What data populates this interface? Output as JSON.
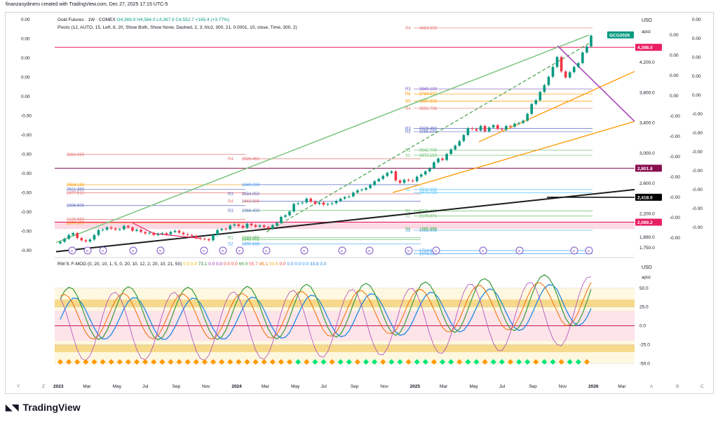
{
  "header": {
    "publisher_line": "finanzasydinero created with TradingView.com, Dec 27, 2025 17:15 UTC-5"
  },
  "legend": {
    "symbol_line": "Gold Futures · 1W · COMEX",
    "ohlc": "O4,369.9 H4,584.0 L4,367.9 C4,552.7 +165.4 (+3.77%)",
    "pivots_line": "Pivots (12, AUTO, 15, Left, 8, 20, Show Both, Show None, Dashed, 2, 3, hlc3, 300, 21, 0.0001, 10, close, Time, 300, 2)"
  },
  "oscillator_legend": {
    "name": "RW ft. F-MOD (0, 20, 10, 1, 5, 0, 20, 10, 12, 2, 20, 10, 21, 50)",
    "values": [
      "0.0",
      "0.0",
      "73.1",
      "0.0",
      "0.0",
      "0.0",
      "0.0",
      "66.9",
      "55.7",
      "45.1",
      "50.6",
      "0.0",
      "0.0",
      "0.0",
      "0.0",
      "33.8",
      "0.0"
    ]
  },
  "price_axis": {
    "currency": "USD",
    "scale_label": "apoz",
    "ticks": [
      "4,200.0",
      "3,800.0",
      "3,400.0",
      "3,000.0",
      "2,600.0",
      "2,200.0",
      "1,890.0",
      "1,750.0"
    ],
    "badges": [
      {
        "label": "GCG2026",
        "color": "#089981"
      },
      {
        "label": "4,398.0",
        "color": "#e91e63"
      },
      {
        "label": "2,801.8",
        "color": "#880e4f"
      },
      {
        "label": "2,418.0",
        "color": "#000000"
      },
      {
        "label": "2,089.2",
        "color": "#e91e63"
      }
    ]
  },
  "osc_axis": {
    "currency": "USD",
    "scale_label": "apoz",
    "ticks": [
      "50.0",
      "25.0",
      "0.0",
      "-25.0",
      "-50.0"
    ]
  },
  "left_scale": [
    "0.00",
    "0.00",
    "0.00",
    "0.00",
    "0.00",
    "-0.00",
    "-0.00",
    "-0.00",
    "-0.00",
    "-0.00",
    "-0.00",
    "-0.00",
    "-0.00"
  ],
  "right_scale_a": [
    "0.00",
    "0.00",
    "0.00",
    "0.00",
    "-0.00",
    "-0.00",
    "-0.00",
    "-0.00",
    "-0.00",
    "-0.00",
    "-0.00"
  ],
  "right_scale_b": [
    "0.00",
    "0.00",
    "0.00",
    "0.00",
    "0.00",
    "-0.00",
    "-0.00",
    "-0.00",
    "-0.00",
    "-0.00",
    "-0.00",
    "-0.00"
  ],
  "time_axis": [
    "2023",
    "Mar",
    "May",
    "Jul",
    "Sep",
    "Nov",
    "2024",
    "Mar",
    "May",
    "Jul",
    "Sep",
    "Nov",
    "2025",
    "Mar",
    "May",
    "Jul",
    "Sep",
    "Nov",
    "2026",
    "Mar"
  ],
  "corner_letters": [
    "Y",
    "Z",
    "A",
    "B",
    "C"
  ],
  "pivot_labels": [
    {
      "t": "R4",
      "v": "4654.500",
      "c": "#e57373"
    },
    {
      "t": "R3",
      "v": "3849.100",
      "c": "#7e57c2"
    },
    {
      "t": "R6",
      "v": "3783.077",
      "c": "#ff9800"
    },
    {
      "t": "R5",
      "v": "3687.833",
      "c": "#ff9800"
    },
    {
      "t": "R4",
      "v": "3592.796",
      "c": "#e57373"
    },
    {
      "t": "R3",
      "v": "3326.450",
      "c": "#5c6bc0"
    },
    {
      "t": "R3",
      "v": "3285.193",
      "c": "#5c6bc0"
    },
    {
      "t": "R1",
      "v": "3042.700",
      "c": "#66bb6a"
    },
    {
      "t": "S1",
      "v": "2972.150",
      "c": "#66bb6a"
    },
    {
      "t": "R4",
      "v": "2926.450",
      "c": "#e57373"
    },
    {
      "t": "",
      "v": "2983.050",
      "c": "#e57373"
    },
    {
      "t": "S2",
      "v": "2520.050",
      "c": "#4fc3f7"
    },
    {
      "t": "",
      "v": "2479.733",
      "c": "#4fc3f7"
    },
    {
      "t": "S1",
      "v": "2238.300",
      "c": "#66bb6a"
    },
    {
      "t": "S1",
      "v": "2170.071",
      "c": "#66bb6a"
    },
    {
      "t": "S2",
      "v": "1981.996",
      "c": "#42a5f5"
    },
    {
      "t": "S2",
      "v": "1800.586",
      "c": "#42a5f5"
    },
    {
      "t": "S2",
      "v": "1714.650",
      "c": "#42a5f5"
    },
    {
      "t": "S3",
      "v": "1574.333",
      "c": "#42a5f5"
    },
    {
      "t": "",
      "v": "2584.189",
      "c": "#ff9800"
    },
    {
      "t": "",
      "v": "2521.850",
      "c": "#5c6bc0"
    },
    {
      "t": "",
      "v": "2477.513",
      "c": "#e57373"
    },
    {
      "t": "",
      "v": "2308.600",
      "c": "#5c6bc0"
    },
    {
      "t": "",
      "v": "2125.689",
      "c": "#e57373"
    },
    {
      "t": "",
      "v": "2077.077",
      "c": "#ff9800"
    },
    {
      "t": "",
      "v": "1849.200",
      "c": "#42a5f5"
    },
    {
      "t": "R3",
      "v": "2584.950",
      "c": "#5c6bc0"
    },
    {
      "t": "R4",
      "v": "2463.586",
      "c": "#e57373"
    },
    {
      "t": "R3",
      "v": "2366.433",
      "c": "#5c6bc0"
    },
    {
      "t": "R1",
      "v": "2243.450",
      "c": "#66bb6a"
    },
    {
      "t": "",
      "v": "2142.001",
      "c": "#66bb6a"
    },
    {
      "t": "S1",
      "v": "1885.000",
      "c": "#66bb6a"
    },
    {
      "t": "S1",
      "v": "1861.188",
      "c": "#66bb6a"
    }
  ],
  "chart_data": {
    "type": "candlestick",
    "title": "Gold Futures · 1W · COMEX",
    "y_range": [
      1650,
      4700
    ],
    "weekly_closes": [
      1830,
      1870,
      1920,
      1945,
      1880,
      1850,
      1835,
      1860,
      1920,
      1985,
      1990,
      2020,
      2005,
      1990,
      1995,
      2040,
      2020,
      1975,
      1990,
      1960,
      1940,
      1950,
      1920,
      1935,
      1945,
      1930,
      1960,
      1975,
      1950,
      1930,
      1920,
      1910,
      1880,
      1870,
      1865,
      1850,
      1920,
      1985,
      2000,
      1995,
      2045,
      2060,
      2040,
      2015,
      2070,
      2050,
      2030,
      2045,
      2025,
      2005,
      2050,
      2080,
      2160,
      2180,
      2230,
      2330,
      2340,
      2350,
      2400,
      2360,
      2330,
      2350,
      2320,
      2330,
      2340,
      2370,
      2400,
      2420,
      2430,
      2480,
      2510,
      2520,
      2540,
      2580,
      2630,
      2660,
      2700,
      2740,
      2760,
      2640,
      2610,
      2650,
      2640,
      2630,
      2690,
      2720,
      2760,
      2800,
      2880,
      2930,
      2910,
      2990,
      3050,
      3100,
      3160,
      3240,
      3330,
      3320,
      3300,
      3360,
      3290,
      3340,
      3370,
      3320,
      3310,
      3360,
      3350,
      3390,
      3400,
      3430,
      3520,
      3650,
      3700,
      3810,
      3900,
      4010,
      4140,
      4270,
      4080,
      4000,
      4070,
      4140,
      4190,
      4330,
      4410,
      4552.7
    ],
    "resistance_lines": [
      4398.0,
      2801.8,
      2089.2
    ],
    "trendline_support_end": 2418.0,
    "oscillator": {
      "range": [
        -60,
        75
      ],
      "levels": [
        50,
        25,
        0,
        -25,
        -50
      ]
    }
  }
}
